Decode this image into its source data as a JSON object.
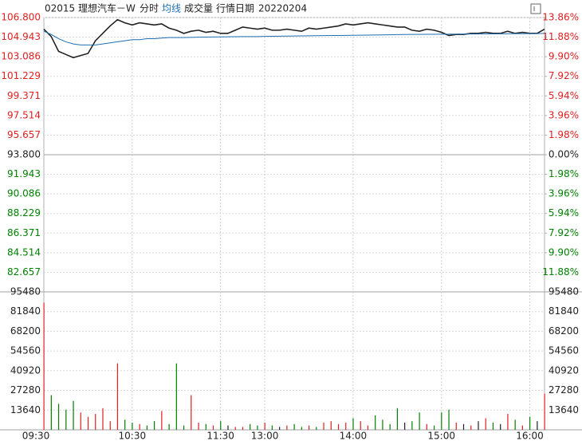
{
  "header": {
    "code": "02015 理想汽车－W",
    "date_label": "行情日期",
    "date": "20220204"
  },
  "chart_data": [
    {
      "type": "line",
      "x": [
        "09:30",
        "09:35",
        "09:40",
        "09:45",
        "09:50",
        "09:55",
        "10:00",
        "10:05",
        "10:10",
        "10:15",
        "10:20",
        "10:25",
        "10:30",
        "10:35",
        "10:40",
        "10:45",
        "10:50",
        "10:55",
        "11:00",
        "11:05",
        "11:10",
        "11:15",
        "11:20",
        "11:25",
        "11:30",
        "11:35",
        "11:40",
        "11:45",
        "11:50",
        "11:55",
        "13:00",
        "13:05",
        "13:10",
        "13:15",
        "13:20",
        "13:25",
        "13:30",
        "13:35",
        "13:40",
        "13:45",
        "13:50",
        "13:55",
        "14:00",
        "14:05",
        "14:10",
        "14:15",
        "14:20",
        "14:25",
        "14:30",
        "14:35",
        "14:40",
        "14:45",
        "14:50",
        "14:55",
        "15:00",
        "15:05",
        "15:10",
        "15:15",
        "15:20",
        "15:25",
        "15:30",
        "15:35",
        "15:40",
        "15:45",
        "15:50",
        "15:55",
        "16:00",
        "16:05",
        "16:10"
      ],
      "series": [
        {
          "name": "分时",
          "color": "#222222",
          "values": [
            105.7,
            105.0,
            103.6,
            103.3,
            103.0,
            103.2,
            103.4,
            104.6,
            105.3,
            106.0,
            106.6,
            106.3,
            106.1,
            106.3,
            106.2,
            106.1,
            106.2,
            105.8,
            105.6,
            105.3,
            105.5,
            105.6,
            105.4,
            105.5,
            105.3,
            105.3,
            105.6,
            105.9,
            105.8,
            105.7,
            105.8,
            105.6,
            105.6,
            105.7,
            105.6,
            105.5,
            105.8,
            105.7,
            105.8,
            105.9,
            106.0,
            106.2,
            106.1,
            106.2,
            106.3,
            106.2,
            106.1,
            106.0,
            105.9,
            105.9,
            105.6,
            105.5,
            105.7,
            105.6,
            105.4,
            105.1,
            105.2,
            105.2,
            105.3,
            105.3,
            105.4,
            105.3,
            105.3,
            105.5,
            105.3,
            105.4,
            105.3,
            105.3,
            105.7
          ]
        },
        {
          "name": "均线",
          "color": "#1f6fb5",
          "values": [
            105.5,
            105.2,
            104.8,
            104.5,
            104.3,
            104.2,
            104.2,
            104.2,
            104.3,
            104.4,
            104.5,
            104.6,
            104.7,
            104.7,
            104.8,
            104.8,
            104.85,
            104.9,
            104.9,
            104.9,
            104.92,
            104.94,
            104.95,
            104.96,
            104.97,
            104.98,
            104.99,
            105.0,
            105.0,
            105.0,
            105.01,
            105.02,
            105.03,
            105.04,
            105.05,
            105.06,
            105.07,
            105.08,
            105.09,
            105.1,
            105.1,
            105.11,
            105.12,
            105.13,
            105.14,
            105.15,
            105.16,
            105.17,
            105.18,
            105.19,
            105.2,
            105.2,
            105.21,
            105.21,
            105.22,
            105.22,
            105.23,
            105.23,
            105.24,
            105.24,
            105.25,
            105.25,
            105.26,
            105.26,
            105.27,
            105.27,
            105.28,
            105.28,
            105.3
          ]
        }
      ],
      "xlim": [
        "09:30",
        "16:10"
      ],
      "ylim": [
        80.8,
        106.8
      ],
      "yticks": [
        {
          "value": 106.8,
          "label": "106.800"
        },
        104.943,
        103.086,
        101.229,
        99.371,
        97.514,
        95.657,
        {
          "value": 93.8,
          "label": "93.800"
        },
        91.943,
        90.086,
        88.229,
        86.371,
        84.514,
        82.657
      ],
      "y2lim": [
        -13.86,
        13.86
      ],
      "y2ticks": [
        {
          "value": 13.86,
          "label": "13.86%"
        },
        {
          "value": 11.88,
          "label": "11.88%"
        },
        {
          "value": 9.9,
          "label": "9.90%"
        },
        {
          "value": 7.92,
          "label": "7.92%"
        },
        {
          "value": 5.94,
          "label": "5.94%"
        },
        {
          "value": 3.96,
          "label": "3.96%"
        },
        {
          "value": 1.98,
          "label": "1.98%"
        },
        {
          "value": 0,
          "label": "0.00%"
        },
        {
          "value": -1.98,
          "label": "1.98%"
        },
        {
          "value": -3.96,
          "label": "3.96%"
        },
        {
          "value": -5.94,
          "label": "5.94%"
        },
        {
          "value": -7.92,
          "label": "7.92%"
        },
        {
          "value": -9.9,
          "label": "9.90%"
        },
        {
          "value": -11.88,
          "label": "11.88%"
        }
      ],
      "up_color": "#e02020",
      "down_color": "#008000",
      "grid": true
    },
    {
      "type": "bar",
      "title": "成交量",
      "values": [
        88000,
        24000,
        18000,
        14000,
        20000,
        12000,
        9000,
        11000,
        15000,
        6000,
        46000,
        7000,
        5000,
        4000,
        3000,
        6000,
        13000,
        4000,
        46000,
        3000,
        24000,
        5000,
        4000,
        3000,
        6000,
        3000,
        2000,
        2000,
        4000,
        3000,
        5000,
        3000,
        2000,
        3000,
        4000,
        2000,
        3000,
        2000,
        5000,
        6000,
        4000,
        5000,
        8000,
        6000,
        3000,
        10000,
        7000,
        4000,
        15000,
        5000,
        6000,
        12000,
        4000,
        3000,
        12000,
        14000,
        5000,
        4000,
        3000,
        6000,
        8000,
        5000,
        4000,
        11000,
        7000,
        3000,
        9000,
        6000,
        25000
      ],
      "ylim": [
        0,
        95480
      ],
      "yticks": [
        95480,
        81840,
        68200,
        54560,
        40920,
        27280,
        13640
      ],
      "xticks": [
        "09:30",
        "10:30",
        "11:30",
        "13:00",
        "14:00",
        "15:00",
        "16:00"
      ],
      "grid": true
    }
  ]
}
